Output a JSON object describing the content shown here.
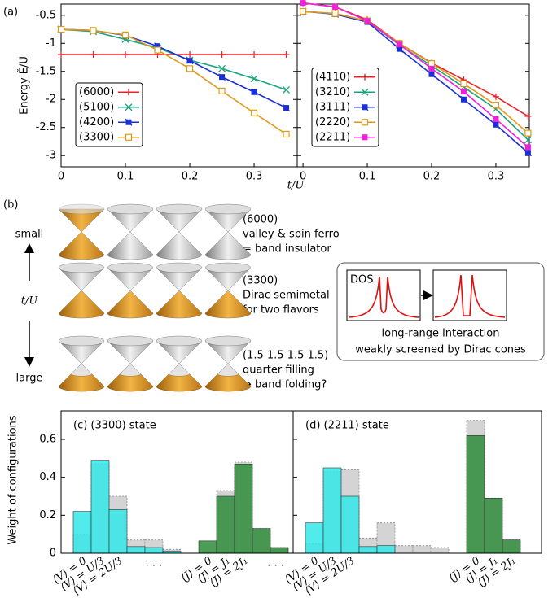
{
  "chart_data": [
    {
      "type": "line",
      "panel_label": "(a)",
      "ylabel": "Energy Ẽ/U",
      "xlabel": "t/U",
      "x": [
        0,
        0.05,
        0.1,
        0.15,
        0.2,
        0.25,
        0.3,
        0.35
      ],
      "xlim": [
        0,
        0.367
      ],
      "xticks": [
        0,
        0.1,
        0.2,
        0.3
      ],
      "ylim": [
        -3.2,
        -0.3
      ],
      "yticks": [
        -0.5,
        -1,
        -1.5,
        -2,
        -2.5,
        -3
      ],
      "ytick_labels": true,
      "legend": "lower-left",
      "series": [
        {
          "name": "(6000)",
          "color": "#e8232a",
          "marker": "plus",
          "values": [
            -1.2,
            -1.2,
            -1.2,
            -1.2,
            -1.2,
            -1.2,
            -1.2,
            -1.2
          ]
        },
        {
          "name": "(5100)",
          "color": "#1ba37c",
          "marker": "x",
          "values": [
            -0.75,
            -0.79,
            -0.93,
            -1.08,
            -1.3,
            -1.45,
            -1.63,
            -1.83
          ]
        },
        {
          "name": "(4200)",
          "color": "#1a2fd6",
          "marker": "boxx",
          "values": [
            -0.75,
            -0.77,
            -0.86,
            -1.05,
            -1.31,
            -1.6,
            -1.87,
            -2.15
          ]
        },
        {
          "name": "(3300)",
          "color": "#e09a1a",
          "marker": "square",
          "values": [
            -0.75,
            -0.77,
            -0.85,
            -1.12,
            -1.45,
            -1.85,
            -2.24,
            -2.62
          ]
        }
      ]
    },
    {
      "type": "line",
      "x": [
        0,
        0.05,
        0.1,
        0.15,
        0.2,
        0.25,
        0.3,
        0.35
      ],
      "xlim": [
        -0.009,
        0.352
      ],
      "xticks": [
        0,
        0.1,
        0.2,
        0.3
      ],
      "ylim": [
        -3.2,
        -0.3
      ],
      "yticks": [
        -0.5,
        -1,
        -1.5,
        -2,
        -2.5,
        -3
      ],
      "ytick_labels": false,
      "legend": "lower-left",
      "series": [
        {
          "name": "(4110)",
          "color": "#e8232a",
          "marker": "plus",
          "values": [
            -0.28,
            -0.35,
            -0.58,
            -1.0,
            -1.35,
            -1.65,
            -1.95,
            -2.3
          ]
        },
        {
          "name": "(3210)",
          "color": "#1ba37c",
          "marker": "x",
          "values": [
            -0.43,
            -0.47,
            -0.6,
            -1.03,
            -1.4,
            -1.78,
            -2.17,
            -2.72
          ]
        },
        {
          "name": "(3111)",
          "color": "#1a2fd6",
          "marker": "boxx",
          "values": [
            -0.43,
            -0.48,
            -0.62,
            -1.1,
            -1.55,
            -2.0,
            -2.45,
            -2.95
          ]
        },
        {
          "name": "(2220)",
          "color": "#e09a1a",
          "marker": "square",
          "values": [
            -0.43,
            -0.47,
            -0.6,
            -1.0,
            -1.36,
            -1.72,
            -2.1,
            -2.6
          ]
        },
        {
          "name": "(2211)",
          "color": "#f020d8",
          "marker": "filled-square",
          "values": [
            -0.28,
            -0.35,
            -0.6,
            -1.02,
            -1.45,
            -1.86,
            -2.35,
            -2.85
          ]
        }
      ]
    },
    {
      "type": "bar",
      "title": "(c) (3300) state",
      "ylabel": "Weight of configurations",
      "categories": [
        "⟨V⟩ = 0",
        "⟨V⟩ = U/3",
        "⟨V⟩ = 2U/3",
        null,
        null,
        null,
        null,
        "⟨J⟩ = 0",
        "⟨J⟩ = J₁",
        "⟨J⟩ = 2J₁",
        null,
        null
      ],
      "ylim": [
        0,
        0.75
      ],
      "yticks": [
        0,
        0.2,
        0.4,
        0.6
      ],
      "ytick_labels": true,
      "annotations": [
        "· · ·",
        "· · ·"
      ],
      "series": [
        {
          "color": "#d4d4d4",
          "style": "dotted",
          "values": [
            0.1,
            0.47,
            0.3,
            0.07,
            0.07,
            0.02,
            null,
            null,
            0.33,
            0.48,
            0.13,
            0.03
          ]
        },
        {
          "color": "#33e8e8",
          "values": [
            0.22,
            0.49,
            0.23,
            0.035,
            0.03,
            0.01,
            null,
            null,
            null,
            null,
            null,
            null
          ]
        },
        {
          "color": "#2e8b3a",
          "values": [
            null,
            null,
            null,
            null,
            null,
            null,
            null,
            0.065,
            0.3,
            0.47,
            0.13,
            0.03
          ]
        }
      ]
    },
    {
      "type": "bar",
      "title": "(d) (2211) state",
      "categories": [
        "⟨V⟩ = 0",
        "⟨V⟩ = U/3",
        "⟨V⟩ = 2U/3",
        null,
        null,
        null,
        null,
        null,
        null,
        "⟨J⟩ = 0",
        "⟨J⟩ = J₁",
        "⟨J⟩ = 2J₁"
      ],
      "ylim": [
        0,
        0.75
      ],
      "yticks": [
        0,
        0.2,
        0.4,
        0.6
      ],
      "ytick_labels": false,
      "series": [
        {
          "color": "#d4d4d4",
          "style": "dotted",
          "values": [
            0.05,
            0.43,
            0.44,
            0.08,
            0.16,
            0.04,
            0.04,
            0.03,
            null,
            0.7,
            0.29,
            0.07
          ]
        },
        {
          "color": "#33e8e8",
          "values": [
            0.16,
            0.45,
            0.3,
            0.035,
            0.04,
            null,
            null,
            null,
            null,
            null,
            null,
            null
          ]
        },
        {
          "color": "#2e8b3a",
          "values": [
            null,
            null,
            null,
            null,
            null,
            null,
            null,
            null,
            null,
            0.62,
            0.29,
            0.07
          ]
        }
      ]
    }
  ],
  "panel_b": {
    "label": "(b)",
    "small": "small",
    "large": "large",
    "axis": "t/U",
    "rows": [
      {
        "state": "(6000)",
        "line1": "valley & spin ferro",
        "line2": "= band insulator"
      },
      {
        "state": "(3300)",
        "line1": "Dirac semimetal",
        "line2": "for two flavors"
      },
      {
        "state": "(1.5 1.5 1.5 1.5)",
        "line1": "quarter filling",
        "line2": "→ band folding?"
      }
    ],
    "dos": "DOS",
    "note1": "long-range interaction",
    "note2": "weakly screened by Dirac cones"
  }
}
